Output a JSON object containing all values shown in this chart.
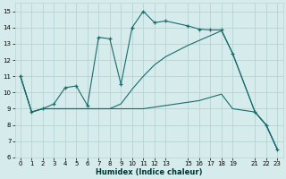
{
  "xlabel": "Humidex (Indice chaleur)",
  "bg_color": "#d6ecec",
  "grid_color": "#b8d4d4",
  "line_color": "#1a6b6b",
  "ylim": [
    6,
    15.5
  ],
  "xlim": [
    -0.5,
    23.5
  ],
  "yticks": [
    6,
    7,
    8,
    9,
    10,
    11,
    12,
    13,
    14,
    15
  ],
  "xtick_vals": [
    0,
    1,
    2,
    3,
    4,
    5,
    6,
    7,
    8,
    9,
    10,
    11,
    12,
    13,
    15,
    16,
    17,
    18,
    19,
    21,
    22,
    23
  ],
  "xtick_labels": [
    "0",
    "1",
    "2",
    "3",
    "4",
    "5",
    "6",
    "7",
    "8",
    "9",
    "10",
    "11",
    "12",
    "13",
    "15",
    "16",
    "17",
    "18",
    "19",
    "21",
    "22",
    "23"
  ],
  "series1": {
    "x": [
      0,
      1,
      2,
      3,
      4,
      5,
      6,
      7,
      8,
      9,
      10,
      11,
      12,
      13,
      15,
      16,
      17,
      18,
      19,
      21,
      22,
      23
    ],
    "y": [
      11.0,
      8.8,
      9.0,
      9.3,
      10.3,
      10.4,
      9.2,
      13.4,
      13.3,
      10.5,
      14.0,
      15.0,
      14.3,
      14.4,
      14.1,
      13.9,
      13.85,
      13.85,
      12.4,
      8.8,
      8.0,
      6.5
    ]
  },
  "series2": {
    "x": [
      0,
      1,
      2,
      6,
      7,
      8,
      9,
      10,
      11,
      12,
      13,
      15,
      16,
      17,
      18,
      19,
      21,
      22,
      23
    ],
    "y": [
      11.0,
      8.8,
      9.0,
      9.0,
      9.0,
      9.0,
      9.0,
      9.0,
      9.0,
      9.1,
      9.2,
      9.4,
      9.5,
      9.7,
      9.9,
      9.0,
      8.8,
      8.0,
      6.5
    ]
  },
  "series3": {
    "x": [
      0,
      1,
      2,
      6,
      7,
      8,
      9,
      10,
      11,
      12,
      13,
      15,
      16,
      17,
      18,
      19,
      21,
      22,
      23
    ],
    "y": [
      11.0,
      8.8,
      9.0,
      9.0,
      9.0,
      9.0,
      9.3,
      10.2,
      11.0,
      11.7,
      12.2,
      12.9,
      13.2,
      13.5,
      13.8,
      12.4,
      8.8,
      8.0,
      6.5
    ]
  }
}
